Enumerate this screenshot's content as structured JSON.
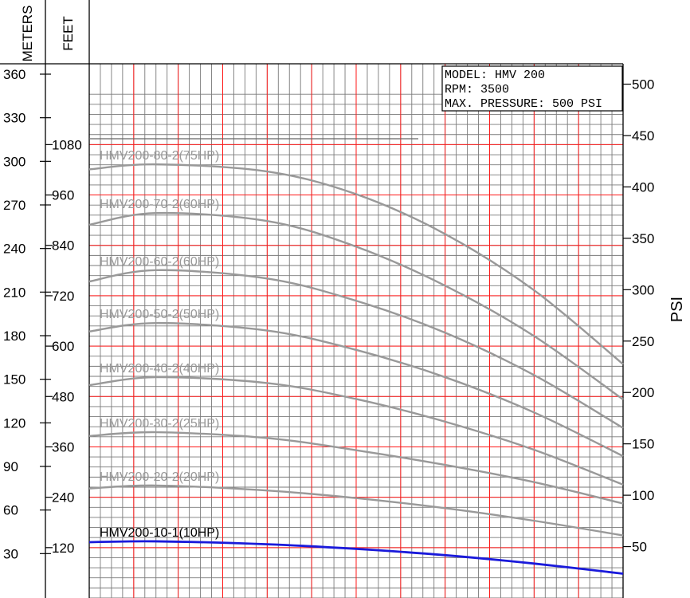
{
  "chart_data": {
    "type": "line",
    "axes": {
      "left_meters": {
        "title": "METERS",
        "ticks": [
          30,
          60,
          90,
          120,
          150,
          180,
          210,
          240,
          270,
          300,
          330,
          360
        ],
        "labels": [
          "30",
          "60",
          "90",
          "120",
          "150",
          "180",
          "210",
          "240",
          "270",
          "300",
          "330",
          "360"
        ]
      },
      "left_feet": {
        "title": "FEET",
        "ticks": [
          120,
          240,
          360,
          480,
          600,
          720,
          840,
          960,
          1080
        ],
        "labels": [
          "120",
          "240",
          "360",
          "480",
          "600",
          "720",
          "840",
          "960",
          "1080"
        ]
      },
      "right_psi": {
        "title": "PSI",
        "ticks": [
          50,
          100,
          150,
          200,
          250,
          300,
          350,
          400,
          450,
          500
        ],
        "labels": [
          "50",
          "100",
          "150",
          "200",
          "250",
          "300",
          "350",
          "400",
          "450",
          "500"
        ]
      },
      "x": {
        "range": [
          0,
          24
        ]
      },
      "y_feet_range": [
        0,
        1215
      ]
    },
    "grid": true,
    "info_box": [
      "MODEL: HMV 200",
      "RPM: 3500",
      "MAX. PRESSURE: 500 PSI"
    ],
    "series": [
      {
        "name": "HMV200-80-2(75HP)",
        "color": "#999999",
        "x": [
          0,
          3,
          8,
          12,
          16,
          20,
          24
        ],
        "y": [
          1021,
          1033,
          1016,
          962,
          867,
          733,
          557
        ]
      },
      {
        "name": "HMV200-70-2(60HP)",
        "color": "#999999",
        "x": [
          0,
          3,
          8,
          12,
          16,
          20,
          24
        ],
        "y": [
          889,
          917,
          898,
          837,
          744,
          624,
          473
        ]
      },
      {
        "name": "HMV200-60-2(60HP)",
        "color": "#999999",
        "x": [
          0,
          3,
          8,
          12,
          16,
          20,
          24
        ],
        "y": [
          754,
          781,
          761,
          708,
          632,
          531,
          405
        ]
      },
      {
        "name": "HMV200-50-2(50HP)",
        "color": "#999999",
        "x": [
          0,
          3,
          8,
          12,
          16,
          20,
          24
        ],
        "y": [
          635,
          655,
          637,
          591,
          526,
          442,
          338
        ]
      },
      {
        "name": "HMV200-40-2(40HP)",
        "color": "#999999",
        "x": [
          0,
          3,
          8,
          12,
          16,
          20,
          24
        ],
        "y": [
          507,
          526,
          512,
          474,
          420,
          353,
          270
        ]
      },
      {
        "name": "HMV200-30-2(25HP)",
        "color": "#999999",
        "x": [
          0,
          3,
          8,
          12,
          16,
          20,
          24
        ],
        "y": [
          386,
          395,
          381,
          352,
          317,
          276,
          225
        ]
      },
      {
        "name": "HMV200-20-2(20HP)",
        "color": "#999999",
        "x": [
          0,
          3,
          8,
          12,
          16,
          20,
          24
        ],
        "y": [
          261,
          268,
          256,
          238,
          214,
          184,
          149
        ]
      },
      {
        "name": "HMV200-10-1(10HP)",
        "color": "#1a1adb",
        "x": [
          0,
          3,
          8,
          12,
          16,
          20,
          24
        ],
        "y": [
          133,
          135,
          128,
          117,
          102,
          82,
          58
        ]
      }
    ]
  }
}
